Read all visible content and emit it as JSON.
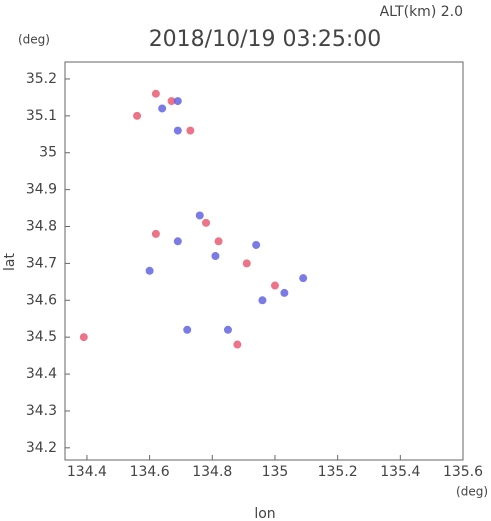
{
  "chart_data": {
    "type": "scatter",
    "title": "2018/10/19 03:25:00",
    "subtitle": "ALT(km) 2.0",
    "y_unit": "(deg)",
    "x_unit": "(deg)",
    "xlabel": "lon",
    "ylabel": "lat",
    "xlim": [
      134.33,
      135.6
    ],
    "ylim": [
      34.167,
      35.246
    ],
    "xticks": [
      134.4,
      134.6,
      134.8,
      135.0,
      135.2,
      135.4,
      135.6
    ],
    "yticks": [
      34.2,
      34.3,
      34.4,
      34.5,
      34.6,
      34.7,
      34.8,
      34.9,
      35.0,
      35.1,
      35.2
    ],
    "series": [
      {
        "color": "#e8506a",
        "x": [
          134.56,
          134.62,
          134.73,
          134.62,
          134.78,
          134.82,
          134.88,
          134.39,
          135.0,
          134.91,
          134.67
        ],
        "y": [
          35.1,
          35.16,
          35.06,
          34.78,
          34.81,
          34.76,
          34.48,
          34.5,
          34.64,
          34.7,
          35.14
        ]
      },
      {
        "color": "#5a5ae0",
        "x": [
          134.69,
          134.64,
          134.69,
          134.69,
          134.81,
          134.94,
          135.03,
          135.09,
          134.85,
          134.72,
          134.6,
          134.96,
          134.76
        ],
        "y": [
          35.14,
          35.12,
          35.06,
          34.76,
          34.72,
          34.75,
          34.62,
          34.66,
          34.52,
          34.52,
          34.68,
          34.6,
          34.83
        ]
      }
    ]
  }
}
